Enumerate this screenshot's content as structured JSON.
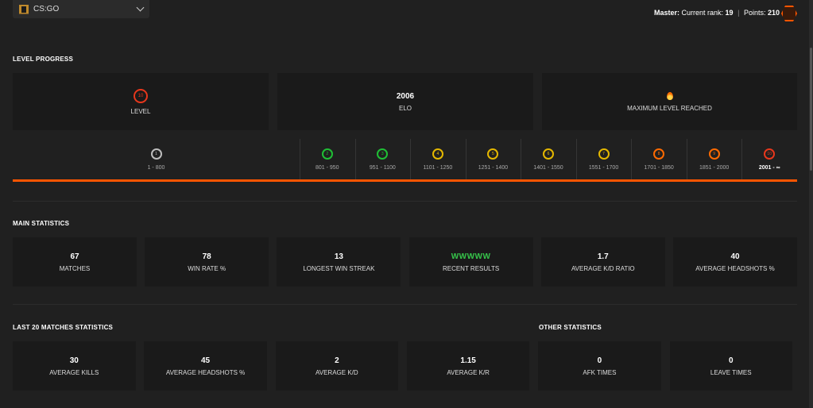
{
  "header": {
    "game": "CS:GO",
    "rank_label": "Master:",
    "rank_text": "Current rank:",
    "rank_value": "19",
    "points_text": "Points:",
    "points_value": "210"
  },
  "level_progress": {
    "title": "LEVEL PROGRESS",
    "level": {
      "value": "10",
      "caption": "LEVEL"
    },
    "elo": {
      "value": "2006",
      "caption": "ELO"
    },
    "max": {
      "caption": "MAXIMUM LEVEL REACHED"
    },
    "levels": [
      {
        "level": "1",
        "range": "1 - 800",
        "color": "#bdbdbd"
      },
      {
        "level": "2",
        "range": "801 - 950",
        "color": "#1fbf35"
      },
      {
        "level": "3",
        "range": "951 - 1100",
        "color": "#1fbf35"
      },
      {
        "level": "4",
        "range": "1101 - 1250",
        "color": "#e5b800"
      },
      {
        "level": "5",
        "range": "1251 - 1400",
        "color": "#e5b800"
      },
      {
        "level": "6",
        "range": "1401 - 1550",
        "color": "#e5b800"
      },
      {
        "level": "7",
        "range": "1551 - 1700",
        "color": "#e5b800"
      },
      {
        "level": "8",
        "range": "1701 - 1850",
        "color": "#ff6a00"
      },
      {
        "level": "9",
        "range": "1851 - 2000",
        "color": "#ff6a00"
      },
      {
        "level": "10",
        "range": "2001 - ∞",
        "color": "#e8371c"
      }
    ]
  },
  "main_statistics": {
    "title": "MAIN STATISTICS",
    "cards": [
      {
        "value": "67",
        "caption": "MATCHES"
      },
      {
        "value": "78",
        "caption": "WIN RATE %"
      },
      {
        "value": "13",
        "caption": "LONGEST WIN STREAK"
      },
      {
        "value": "WWWWW",
        "caption": "RECENT RESULTS"
      },
      {
        "value": "1.7",
        "caption": "AVERAGE K/D RATIO"
      },
      {
        "value": "40",
        "caption": "AVERAGE HEADSHOTS %"
      }
    ]
  },
  "last20": {
    "title": "LAST 20 MATCHES STATISTICS",
    "cards": [
      {
        "value": "30",
        "caption": "AVERAGE KILLS"
      },
      {
        "value": "45",
        "caption": "AVERAGE HEADSHOTS %"
      },
      {
        "value": "2",
        "caption": "AVERAGE K/D"
      },
      {
        "value": "1.15",
        "caption": "AVERAGE K/R"
      }
    ]
  },
  "other": {
    "title": "OTHER STATISTICS",
    "cards": [
      {
        "value": "0",
        "caption": "AFK TIMES"
      },
      {
        "value": "0",
        "caption": "LEAVE TIMES"
      }
    ]
  },
  "colors": {
    "accent": "#ff5500",
    "win": "#36c44a"
  }
}
